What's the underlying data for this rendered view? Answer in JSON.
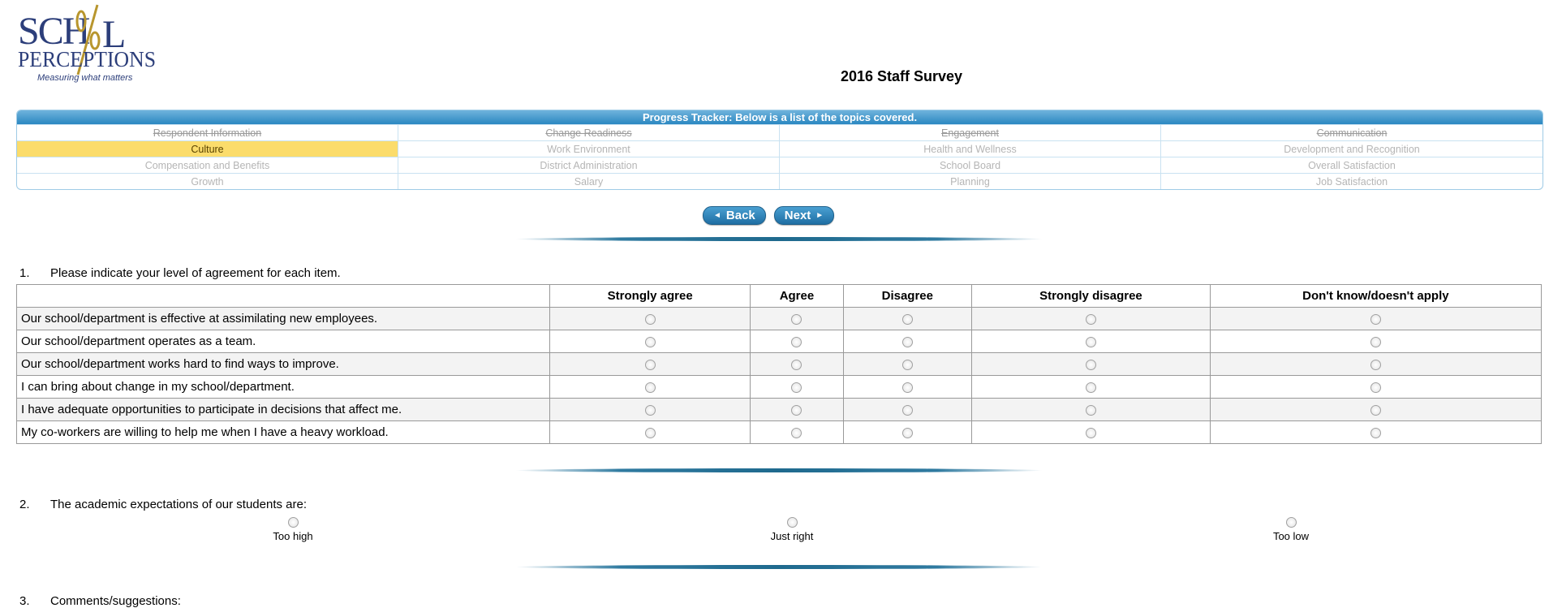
{
  "logo": {
    "line1": "SCH",
    "line1_end": "L",
    "line2": "PERCEPTIONS",
    "tagline": "Measuring what matters"
  },
  "page_title": "2016 Staff Survey",
  "tracker": {
    "header": "Progress Tracker: Below is a list of the topics covered.",
    "topics": [
      {
        "label": "Respondent Information",
        "status": "done"
      },
      {
        "label": "Change Readiness",
        "status": "done"
      },
      {
        "label": "Engagement",
        "status": "done"
      },
      {
        "label": "Communication",
        "status": "done"
      },
      {
        "label": "Culture",
        "status": "current"
      },
      {
        "label": "Work Environment",
        "status": "pending"
      },
      {
        "label": "Health and Wellness",
        "status": "pending"
      },
      {
        "label": "Development and Recognition",
        "status": "pending"
      },
      {
        "label": "Compensation and Benefits",
        "status": "pending"
      },
      {
        "label": "District Administration",
        "status": "pending"
      },
      {
        "label": "School Board",
        "status": "pending"
      },
      {
        "label": "Overall Satisfaction",
        "status": "pending"
      },
      {
        "label": "Growth",
        "status": "pending"
      },
      {
        "label": "Salary",
        "status": "pending"
      },
      {
        "label": "Planning",
        "status": "pending"
      },
      {
        "label": "Job Satisfaction",
        "status": "pending"
      }
    ]
  },
  "nav": {
    "back_label": "Back",
    "next_label": "Next",
    "back_icon": "◄",
    "next_icon": "►"
  },
  "questions": [
    {
      "number": "1.",
      "text": "Please indicate your level of agreement for each item.",
      "columns": [
        "Strongly agree",
        "Agree",
        "Disagree",
        "Strongly disagree",
        "Don't know/doesn't apply"
      ],
      "rows": [
        "Our school/department is effective at assimilating new employees.",
        "Our school/department operates as a team.",
        "Our school/department works hard to find ways to improve.",
        "I can bring about change in my school/department.",
        "I have adequate opportunities to participate in decisions that affect me.",
        "My co-workers are willing to help me when I have a heavy workload."
      ]
    },
    {
      "number": "2.",
      "text": "The academic expectations of our students are:",
      "options": [
        "Too high",
        "Just right",
        "Too low"
      ]
    },
    {
      "number": "3.",
      "text": "Comments/suggestions:"
    }
  ],
  "colors": {
    "current_topic": "#fbdc6b",
    "tracker_header": "#2b87c1",
    "button": "#1f6ea3",
    "logo_navy": "#2c3e7a",
    "logo_gold": "#b8962e"
  }
}
